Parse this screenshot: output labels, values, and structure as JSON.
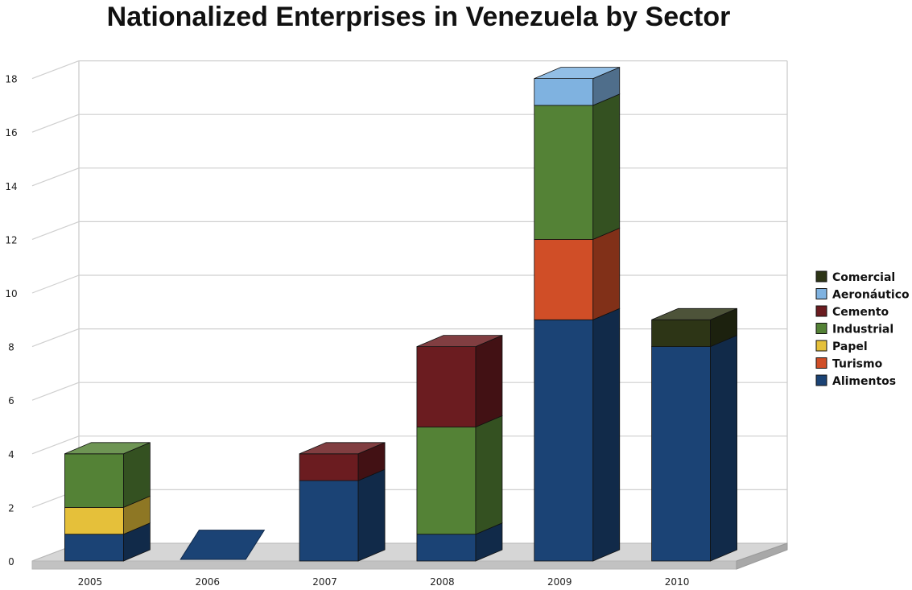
{
  "chart_data": {
    "type": "bar",
    "stacked": true,
    "three_d": true,
    "title": "Nationalized Enterprises in Venezuela by Sector",
    "xlabel": "",
    "ylabel": "",
    "categories": [
      "2005",
      "2006",
      "2007",
      "2008",
      "2009",
      "2010"
    ],
    "ylim": [
      0,
      18
    ],
    "yticks": [
      0,
      2,
      4,
      6,
      8,
      10,
      12,
      14,
      16,
      18
    ],
    "grid": true,
    "legend_position": "right",
    "series": [
      {
        "name": "Alimentos",
        "color": "#1b4375",
        "values": [
          1,
          0,
          3,
          1,
          9,
          8
        ]
      },
      {
        "name": "Turismo",
        "color": "#d04e27",
        "values": [
          0,
          0,
          0,
          0,
          3,
          0
        ]
      },
      {
        "name": "Papel",
        "color": "#e5c03a",
        "values": [
          1,
          0,
          0,
          0,
          0,
          0
        ]
      },
      {
        "name": "Industrial",
        "color": "#548236",
        "values": [
          2,
          0,
          0,
          4,
          5,
          0
        ]
      },
      {
        "name": "Cemento",
        "color": "#6b1c20",
        "values": [
          0,
          0,
          1,
          3,
          0,
          0
        ]
      },
      {
        "name": "Aeronáutico",
        "color": "#7fb2e0",
        "values": [
          0,
          0,
          0,
          0,
          1,
          0
        ]
      },
      {
        "name": "Comercial",
        "color": "#2d3516",
        "values": [
          0,
          0,
          0,
          0,
          0,
          1
        ]
      }
    ]
  }
}
